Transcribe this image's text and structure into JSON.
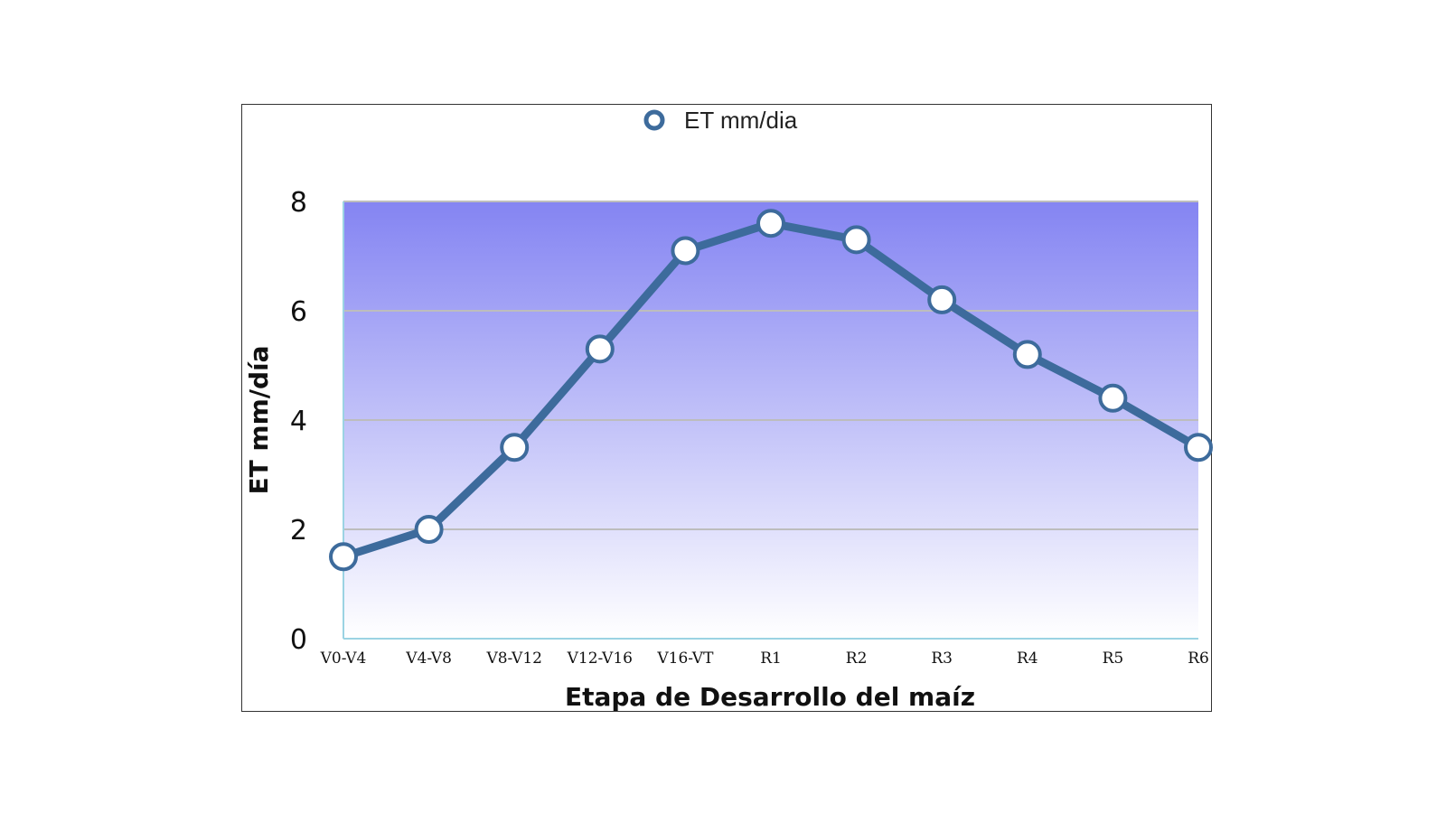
{
  "chart_data": {
    "type": "line",
    "categories": [
      "V0-V4",
      "V4-V8",
      "V8-V12",
      "V12-V16",
      "V16-VT",
      "R1",
      "R2",
      "R3",
      "R4",
      "R5",
      "R6"
    ],
    "series": [
      {
        "name": "ET mm/dia",
        "values": [
          1.5,
          2.0,
          3.5,
          5.3,
          7.1,
          7.6,
          7.3,
          6.2,
          5.2,
          4.4,
          3.5
        ]
      }
    ],
    "xlabel": "Etapa de Desarrollo del maíz",
    "ylabel": "ET mm/día",
    "ylim": [
      0,
      8
    ],
    "yticks": [
      0,
      2,
      4,
      6,
      8
    ],
    "grid": "horizontal",
    "legend": "top-center",
    "colors": {
      "line": "#3D6B9C",
      "marker_fill": "#FFFFFF",
      "bg_top": "#8484F2",
      "bg_bottom": "#FFFFFF",
      "grid": "#BDBDBD",
      "axis": "#9BD3E3"
    }
  }
}
